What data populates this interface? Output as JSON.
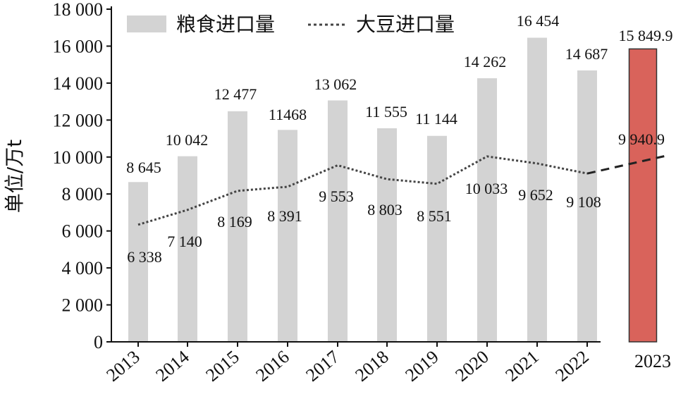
{
  "chart_data": {
    "type": "bar",
    "categories": [
      "2013",
      "2014",
      "2015",
      "2016",
      "2017",
      "2018",
      "2019",
      "2020",
      "2021",
      "2022",
      "2023"
    ],
    "series": [
      {
        "name": "粮食进口量",
        "type": "bar",
        "values": [
          8645,
          10042,
          12477,
          11468,
          13062,
          11555,
          11144,
          14262,
          16454,
          14687,
          15849.9
        ],
        "value_labels": [
          "8 645",
          "10 042",
          "12 477",
          "11468",
          "13 062",
          "11 555",
          "11 144",
          "14 262",
          "16 454",
          "14 687",
          "15 849.9"
        ],
        "color": "#d3d3d3",
        "highlight_color": "#d9635b"
      },
      {
        "name": "大豆进口量",
        "type": "line",
        "style": "dashed",
        "values": [
          6338,
          7140,
          8169,
          8391,
          9553,
          8803,
          8551,
          10033,
          9652,
          9108,
          9940.9
        ],
        "value_labels": [
          "6 338",
          "7 140",
          "8 169",
          "8 391",
          "9 553",
          "8 803",
          "8 551",
          "10 033",
          "9 652",
          "9 108",
          "9 940.9"
        ],
        "color": "#444444"
      }
    ],
    "ylabel": "单位/万t",
    "ylim": [
      0,
      18000
    ],
    "yticks": [
      0,
      2000,
      4000,
      6000,
      8000,
      10000,
      12000,
      14000,
      16000,
      18000
    ],
    "ytick_labels": [
      "0",
      "2 000",
      "4 000",
      "6 000",
      "8 000",
      "10 000",
      "12 000",
      "14 000",
      "16 000",
      "18 000"
    ],
    "legend_position": "top-left",
    "grid": false
  }
}
